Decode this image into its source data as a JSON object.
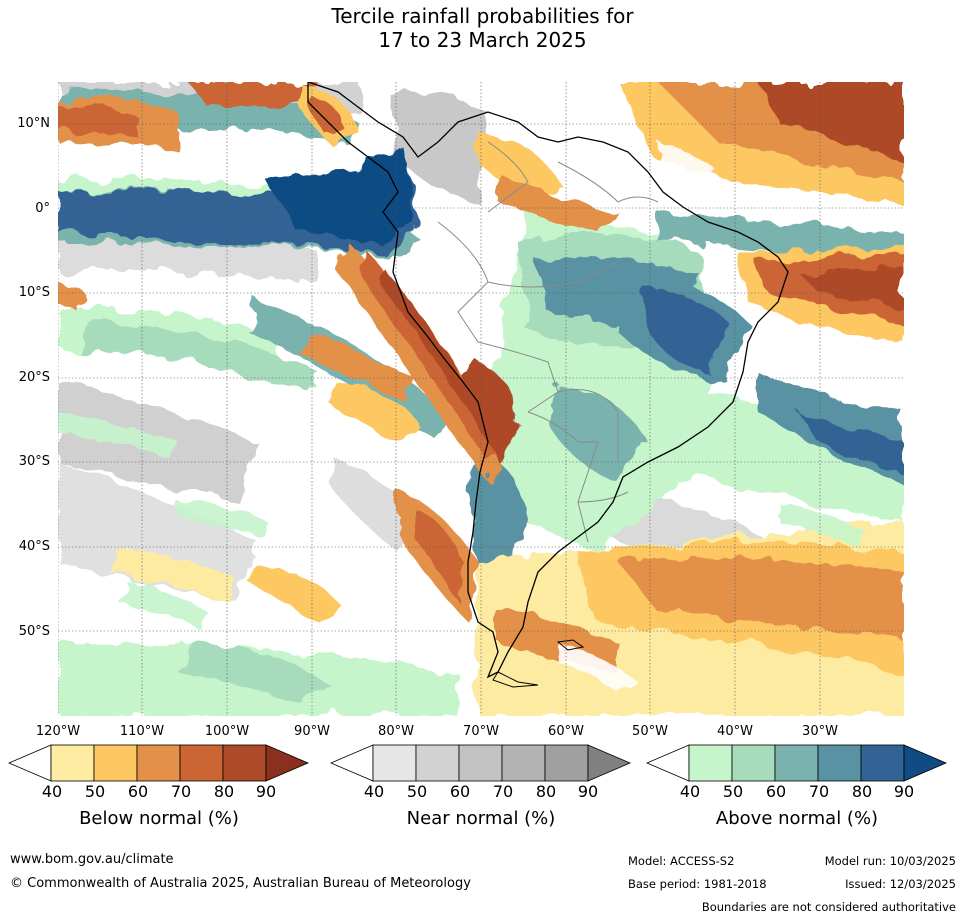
{
  "title": {
    "line1": "Tercile rainfall probabilities for",
    "line2": "17 to 23 March 2025"
  },
  "map": {
    "lat_labels": [
      "10°N",
      "0°",
      "10°S",
      "20°S",
      "30°S",
      "40°S",
      "50°S"
    ],
    "lon_labels": [
      "120°W",
      "110°W",
      "100°W",
      "90°W",
      "80°W",
      "70°W",
      "60°W",
      "50°W",
      "40°W",
      "30°W"
    ],
    "region": "South America",
    "features": [
      "coastlines",
      "country boundaries",
      "graticule"
    ]
  },
  "colorbars": {
    "below": {
      "title": "Below normal (%)",
      "ticks": [
        "40",
        "50",
        "60",
        "70",
        "80",
        "90"
      ],
      "colors": [
        "#ffffff",
        "#feeba2",
        "#fdc862",
        "#e3914a",
        "#cc6534",
        "#ad4a28",
        "#8b2f1f"
      ]
    },
    "near": {
      "title": "Near normal (%)",
      "ticks": [
        "40",
        "50",
        "60",
        "70",
        "80",
        "90"
      ],
      "colors": [
        "#ffffff",
        "#e6e6e6",
        "#d2d2d2",
        "#c2c2c2",
        "#b2b2b2",
        "#a0a0a0",
        "#808080"
      ]
    },
    "above": {
      "title": "Above normal (%)",
      "ticks": [
        "40",
        "50",
        "60",
        "70",
        "80",
        "90"
      ],
      "colors": [
        "#ffffff",
        "#c6f5cc",
        "#a6dcbc",
        "#7ab3ad",
        "#5892a3",
        "#316394",
        "#104b84"
      ]
    }
  },
  "footer": {
    "url": "www.bom.gov.au/climate",
    "copyright": "© Commonwealth of Australia 2025, Australian Bureau of Meteorology",
    "model": "Model: ACCESS-S2",
    "model_run": "Model run: 10/03/2025",
    "base_period": "Base period: 1981-2018",
    "issued": "Issued: 12/03/2025",
    "disclaimer": "Boundaries are not considered authoritative"
  }
}
